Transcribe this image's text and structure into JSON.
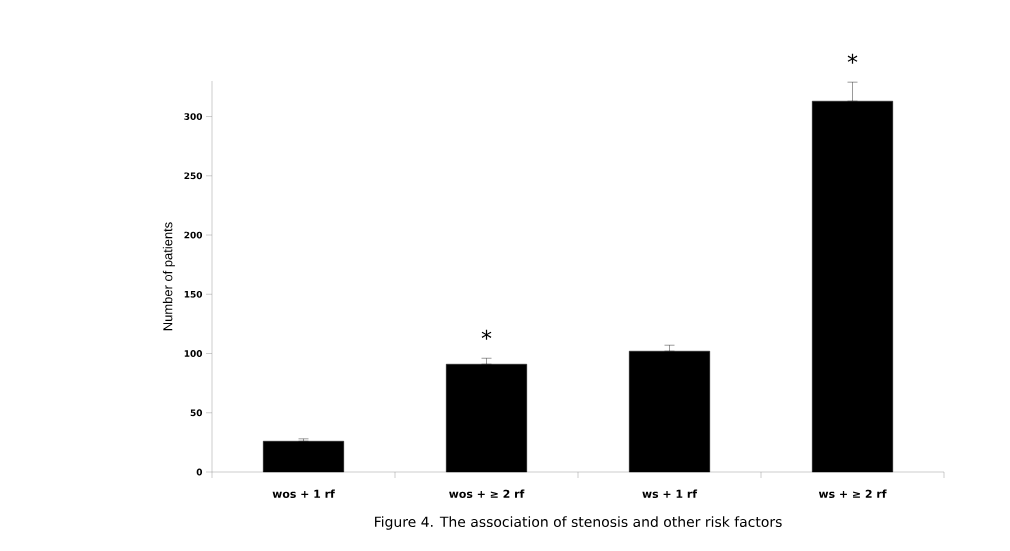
{
  "chart_data": {
    "type": "bar",
    "ylabel": "Number of patients",
    "categories": [
      "wos + 1 rf",
      "wos + ≥ 2 rf",
      "ws + 1 rf",
      "ws + ≥ 2 rf"
    ],
    "values": [
      26,
      91,
      102,
      313
    ],
    "errors": [
      [
        26,
        28
      ],
      [
        91,
        96
      ],
      [
        102,
        107
      ],
      [
        313,
        329
      ]
    ],
    "color": "#000000",
    "ylim": [
      0,
      330
    ],
    "yticks": [
      0,
      50,
      100,
      150,
      200,
      250,
      300
    ],
    "grid": false,
    "annotations": [
      {
        "text": "*",
        "x": "wos + ≥ 2 rf",
        "y": 96
      },
      {
        "text": "*",
        "x": "ws + ≥ 2 rf",
        "y": 329
      },
      "Figure 4. The association of stenosis and other risk factors"
    ]
  }
}
